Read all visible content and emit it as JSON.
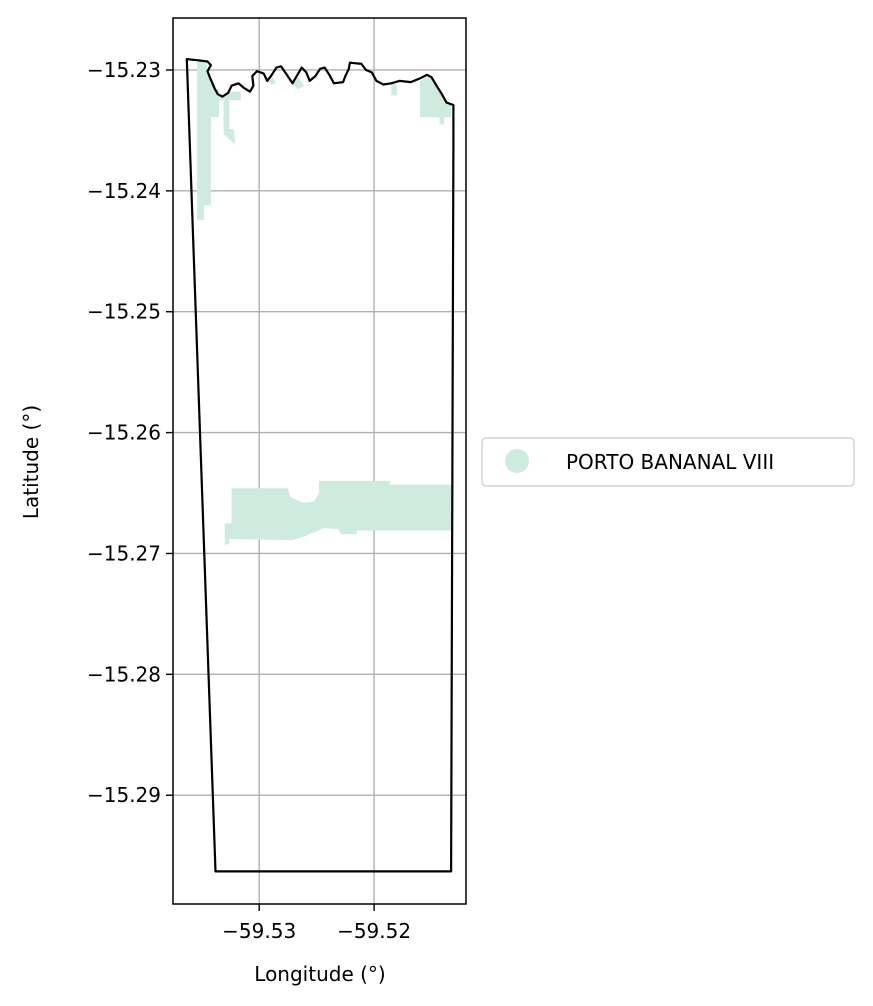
{
  "chart_data": {
    "type": "map",
    "title": "",
    "xlabel": "Longitude (°)",
    "ylabel": "Latitude (°)",
    "xlim": [
      -59.5375,
      -59.512
    ],
    "ylim": [
      -15.299,
      -15.2257
    ],
    "grid": true,
    "xticks": [
      {
        "value": -59.53,
        "label": "−59.53"
      },
      {
        "value": -59.52,
        "label": "−59.52"
      }
    ],
    "yticks": [
      {
        "value": -15.23,
        "label": "−15.23"
      },
      {
        "value": -15.24,
        "label": "−15.24"
      },
      {
        "value": -15.25,
        "label": "−15.25"
      },
      {
        "value": -15.26,
        "label": "−15.26"
      },
      {
        "value": -15.27,
        "label": "−15.27"
      },
      {
        "value": -15.28,
        "label": "−15.28"
      },
      {
        "value": -15.29,
        "label": "−15.29"
      }
    ],
    "boundary": {
      "stroke": "#000000",
      "coords": [
        [
          -59.5363,
          -15.2291
        ],
        [
          -59.5353,
          -15.2292
        ],
        [
          -59.5345,
          -15.2293
        ],
        [
          -59.5342,
          -15.2296
        ],
        [
          -59.5345,
          -15.2301
        ],
        [
          -59.5343,
          -15.2306
        ],
        [
          -59.5339,
          -15.2315
        ],
        [
          -59.5336,
          -15.232
        ],
        [
          -59.5332,
          -15.2322
        ],
        [
          -59.5327,
          -15.2319
        ],
        [
          -59.5324,
          -15.2313
        ],
        [
          -59.5318,
          -15.2311
        ],
        [
          -59.5313,
          -15.2315
        ],
        [
          -59.5308,
          -15.2318
        ],
        [
          -59.5305,
          -15.2313
        ],
        [
          -59.5306,
          -15.2305
        ],
        [
          -59.5302,
          -15.2301
        ],
        [
          -59.5296,
          -15.2303
        ],
        [
          -59.5293,
          -15.2309
        ],
        [
          -59.5289,
          -15.2304
        ],
        [
          -59.5285,
          -15.2298
        ],
        [
          -59.5281,
          -15.2297
        ],
        [
          -59.5276,
          -15.2304
        ],
        [
          -59.5271,
          -15.2311
        ],
        [
          -59.5266,
          -15.2303
        ],
        [
          -59.5263,
          -15.2298
        ],
        [
          -59.5259,
          -15.2302
        ],
        [
          -59.5256,
          -15.2309
        ],
        [
          -59.5251,
          -15.2305
        ],
        [
          -59.5247,
          -15.2299
        ],
        [
          -59.5243,
          -15.2298
        ],
        [
          -59.5239,
          -15.2304
        ],
        [
          -59.5235,
          -15.2311
        ],
        [
          -59.5227,
          -15.231
        ],
        [
          -59.5225,
          -15.2305
        ],
        [
          -59.5222,
          -15.2299
        ],
        [
          -59.5221,
          -15.2294
        ],
        [
          -59.5211,
          -15.2295
        ],
        [
          -59.5207,
          -15.23
        ],
        [
          -59.5202,
          -15.2302
        ],
        [
          -59.5198,
          -15.2309
        ],
        [
          -59.5192,
          -15.2312
        ],
        [
          -59.5185,
          -15.2311
        ],
        [
          -59.5178,
          -15.2309
        ],
        [
          -59.5168,
          -15.231
        ],
        [
          -59.516,
          -15.2307
        ],
        [
          -59.5154,
          -15.2304
        ],
        [
          -59.515,
          -15.2306
        ],
        [
          -59.5145,
          -15.2314
        ],
        [
          -59.5141,
          -15.232
        ],
        [
          -59.5137,
          -15.2327
        ],
        [
          -59.5131,
          -15.2329
        ],
        [
          -59.5131,
          -15.2363
        ],
        [
          -59.5133,
          -15.2963
        ],
        [
          -59.5338,
          -15.2963
        ],
        [
          -59.5363,
          -15.2291
        ]
      ]
    },
    "series": [
      {
        "name": "PORTO BANANAL VIII",
        "color": "#cfebdf",
        "polygons": [
          [
            [
              -59.5362,
              -15.2292
            ],
            [
              -59.5346,
              -15.2293
            ],
            [
              -59.5345,
              -15.23
            ],
            [
              -59.5342,
              -15.2306
            ],
            [
              -59.5337,
              -15.2315
            ],
            [
              -59.5332,
              -15.2323
            ],
            [
              -59.5326,
              -15.232
            ],
            [
              -59.5326,
              -15.2318
            ],
            [
              -59.5316,
              -15.2318
            ],
            [
              -59.5316,
              -15.2325
            ],
            [
              -59.5326,
              -15.2325
            ],
            [
              -59.5326,
              -15.2349
            ],
            [
              -59.5322,
              -15.2349
            ],
            [
              -59.5321,
              -15.2362
            ],
            [
              -59.5331,
              -15.2353
            ],
            [
              -59.5331,
              -15.2325
            ],
            [
              -59.5335,
              -15.2325
            ],
            [
              -59.5335,
              -15.2339
            ],
            [
              -59.5342,
              -15.2339
            ],
            [
              -59.5342,
              -15.2412
            ],
            [
              -59.5348,
              -15.2412
            ],
            [
              -59.5348,
              -15.2424
            ],
            [
              -59.5354,
              -15.2424
            ],
            [
              -59.5354,
              -15.2292
            ]
          ],
          [
            [
              -59.5293,
              -15.2309
            ],
            [
              -59.5289,
              -15.2312
            ],
            [
              -59.5285,
              -15.2311
            ],
            [
              -59.5289,
              -15.2305
            ]
          ],
          [
            [
              -59.5271,
              -15.2312
            ],
            [
              -59.5266,
              -15.2316
            ],
            [
              -59.5261,
              -15.2313
            ],
            [
              -59.5266,
              -15.2306
            ]
          ],
          [
            [
              -59.5185,
              -15.2312
            ],
            [
              -59.518,
              -15.2312
            ],
            [
              -59.518,
              -15.2321
            ],
            [
              -59.5185,
              -15.2321
            ]
          ],
          [
            [
              -59.515,
              -15.2306
            ],
            [
              -59.5145,
              -15.2314
            ],
            [
              -59.514,
              -15.2321
            ],
            [
              -59.5135,
              -15.2327
            ],
            [
              -59.5133,
              -15.233
            ],
            [
              -59.5133,
              -15.2339
            ],
            [
              -59.5139,
              -15.2339
            ],
            [
              -59.5139,
              -15.2345
            ],
            [
              -59.5143,
              -15.2345
            ],
            [
              -59.5143,
              -15.2339
            ],
            [
              -59.516,
              -15.2339
            ],
            [
              -59.516,
              -15.231
            ],
            [
              -59.5156,
              -15.2306
            ]
          ],
          [
            [
              -59.5324,
              -15.2646
            ],
            [
              -59.5275,
              -15.2646
            ],
            [
              -59.5273,
              -15.2653
            ],
            [
              -59.5262,
              -15.2658
            ],
            [
              -59.5252,
              -15.2657
            ],
            [
              -59.5248,
              -15.265
            ],
            [
              -59.5248,
              -15.264
            ],
            [
              -59.5186,
              -15.264
            ],
            [
              -59.5186,
              -15.2643
            ],
            [
              -59.5133,
              -15.2643
            ],
            [
              -59.5133,
              -15.2681
            ],
            [
              -59.5215,
              -15.2681
            ],
            [
              -59.5215,
              -15.2684
            ],
            [
              -59.5229,
              -15.2684
            ],
            [
              -59.5231,
              -15.268
            ],
            [
              -59.5244,
              -15.2679
            ],
            [
              -59.5261,
              -15.2686
            ],
            [
              -59.5272,
              -15.2689
            ],
            [
              -59.5326,
              -15.2688
            ],
            [
              -59.5326,
              -15.2692
            ],
            [
              -59.533,
              -15.2693
            ],
            [
              -59.533,
              -15.2675
            ],
            [
              -59.5324,
              -15.2675
            ]
          ]
        ]
      }
    ],
    "legend": {
      "position": "center-right",
      "entries": [
        {
          "label": "PORTO BANANAL VIII",
          "color": "#cfebdf",
          "marker": "circle"
        }
      ]
    }
  }
}
